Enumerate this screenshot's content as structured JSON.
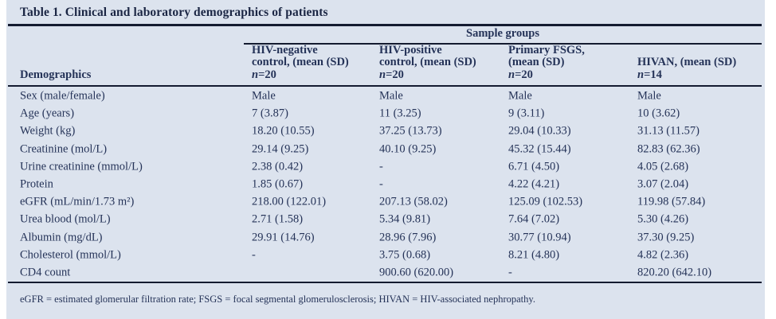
{
  "table": {
    "title": "Table 1. Clinical and laboratory demographics of patients",
    "group_header": "Sample groups",
    "row_header_label": "Demographics",
    "columns": [
      {
        "lines": [
          "HIV-negative",
          "control, (mean (SD)"
        ],
        "n_italic": "n",
        "n_rest": "=20"
      },
      {
        "lines": [
          "HIV-positive",
          "control, (mean (SD)"
        ],
        "n_italic": "n",
        "n_rest": "=20"
      },
      {
        "lines": [
          "Primary FSGS,",
          "(mean (SD)"
        ],
        "n_italic": "n",
        "n_rest": "=20"
      },
      {
        "lines": [
          "HIVAN, (mean (SD)"
        ],
        "n_italic": "n",
        "n_rest": "=14"
      }
    ],
    "rows": [
      {
        "label": "Sex (male/female)",
        "values": [
          "Male",
          "Male",
          "Male",
          "Male"
        ]
      },
      {
        "label": "Age (years)",
        "values": [
          "7 (3.87)",
          "11 (3.25)",
          "9 (3.11)",
          "10 (3.62)"
        ]
      },
      {
        "label": "Weight (kg)",
        "values": [
          "18.20 (10.55)",
          "37.25 (13.73)",
          "29.04 (10.33)",
          "31.13 (11.57)"
        ]
      },
      {
        "label": "Creatinine (mol/L)",
        "values": [
          "29.14 (9.25)",
          "40.10 (9.25)",
          "45.32 (15.44)",
          "82.83 (62.36)"
        ]
      },
      {
        "label": "Urine creatinine (mmol/L)",
        "values": [
          "2.38 (0.42)",
          "-",
          "6.71 (4.50)",
          "4.05 (2.68)"
        ]
      },
      {
        "label": "Protein",
        "values": [
          "1.85 (0.67)",
          "-",
          "4.22 (4.21)",
          "3.07 (2.04)"
        ]
      },
      {
        "label": "eGFR (mL/min/1.73 m²)",
        "values": [
          "218.00 (122.01)",
          "207.13 (58.02)",
          "125.09 (102.53)",
          "119.98 (57.84)"
        ]
      },
      {
        "label": "Urea blood (mol/L)",
        "values": [
          "2.71 (1.58)",
          "5.34 (9.81)",
          "7.64 (7.02)",
          "5.30 (4.26)"
        ]
      },
      {
        "label": "Albumin (mg/dL)",
        "values": [
          "29.91 (14.76)",
          "28.96 (7.96)",
          "30.77 (10.94)",
          "37.30 (9.25)"
        ]
      },
      {
        "label": "Cholesterol (mmol/L)",
        "values": [
          "-",
          "3.75 (0.68)",
          "8.21 (4.80)",
          "4.82 (2.36)"
        ]
      },
      {
        "label": "CD4 count",
        "values": [
          "",
          "900.60 (620.00)",
          "-",
          "820.20 (642.10)"
        ]
      }
    ],
    "footnote": "eGFR = estimated glomerular filtration rate; FSGS = focal segmental glomerulosclerosis; HIVAN = HIV-associated nephropathy.",
    "colors": {
      "panel_background": "#dce3ee",
      "text": "#253358",
      "rule": "#141b30"
    }
  }
}
